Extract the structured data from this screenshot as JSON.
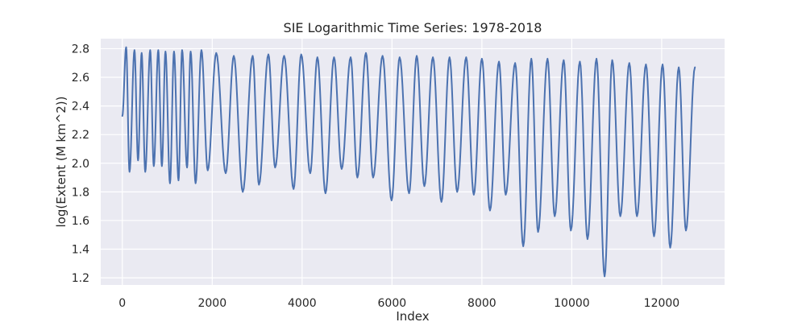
{
  "chart_data": {
    "type": "line",
    "title": "SIE Logarithmic Time Series: 1978-2018",
    "xlabel": "Index",
    "ylabel": "log(Extent (M km^2))",
    "xlim": [
      -480,
      13400
    ],
    "ylim": [
      1.15,
      2.87
    ],
    "xticks": [
      0,
      2000,
      4000,
      6000,
      8000,
      10000,
      12000
    ],
    "yticks": [
      1.2,
      1.4,
      1.6,
      1.8,
      2.0,
      2.2,
      2.4,
      2.6,
      2.8
    ],
    "xtick_labels": [
      "0",
      "2000",
      "4000",
      "6000",
      "8000",
      "10000",
      "12000"
    ],
    "ytick_labels": [
      "1.2",
      "1.4",
      "1.6",
      "1.8",
      "2.0",
      "2.2",
      "2.4",
      "2.6",
      "2.8"
    ],
    "grid": true,
    "legend": "none",
    "background": "#eaeaf2",
    "line_color": "#4c72b0",
    "series": [
      {
        "x_start": 0,
        "start_value": 2.33,
        "end_x": 12740,
        "end_value": 2.67,
        "cycles": [
          {
            "peak_x": 85,
            "peak": 2.81,
            "trough_x": 160,
            "trough": 1.94
          },
          {
            "peak_x": 270,
            "peak": 2.79,
            "trough_x": 350,
            "trough": 2.02
          },
          {
            "peak_x": 430,
            "peak": 2.77,
            "trough_x": 510,
            "trough": 1.94
          },
          {
            "peak_x": 620,
            "peak": 2.79,
            "trough_x": 700,
            "trough": 1.98
          },
          {
            "peak_x": 800,
            "peak": 2.79,
            "trough_x": 880,
            "trough": 1.98
          },
          {
            "peak_x": 960,
            "peak": 2.78,
            "trough_x": 1060,
            "trough": 1.86
          },
          {
            "peak_x": 1150,
            "peak": 2.78,
            "trough_x": 1250,
            "trough": 1.88
          },
          {
            "peak_x": 1330,
            "peak": 2.79,
            "trough_x": 1440,
            "trough": 1.97
          },
          {
            "peak_x": 1520,
            "peak": 2.78,
            "trough_x": 1630,
            "trough": 1.86
          },
          {
            "peak_x": 1760,
            "peak": 2.79,
            "trough_x": 1900,
            "trough": 1.95
          },
          {
            "peak_x": 2090,
            "peak": 2.77,
            "trough_x": 2300,
            "trough": 1.93
          },
          {
            "peak_x": 2480,
            "peak": 2.75,
            "trough_x": 2680,
            "trough": 1.8
          },
          {
            "peak_x": 2900,
            "peak": 2.75,
            "trough_x": 3040,
            "trough": 1.85
          },
          {
            "peak_x": 3250,
            "peak": 2.76,
            "trough_x": 3400,
            "trough": 1.97
          },
          {
            "peak_x": 3600,
            "peak": 2.75,
            "trough_x": 3810,
            "trough": 1.82
          },
          {
            "peak_x": 3980,
            "peak": 2.76,
            "trough_x": 4180,
            "trough": 1.93
          },
          {
            "peak_x": 4340,
            "peak": 2.74,
            "trough_x": 4520,
            "trough": 1.79
          },
          {
            "peak_x": 4710,
            "peak": 2.74,
            "trough_x": 4880,
            "trough": 1.96
          },
          {
            "peak_x": 5080,
            "peak": 2.74,
            "trough_x": 5230,
            "trough": 1.9
          },
          {
            "peak_x": 5420,
            "peak": 2.77,
            "trough_x": 5580,
            "trough": 1.9
          },
          {
            "peak_x": 5790,
            "peak": 2.75,
            "trough_x": 5990,
            "trough": 1.74
          },
          {
            "peak_x": 6170,
            "peak": 2.74,
            "trough_x": 6380,
            "trough": 1.79
          },
          {
            "peak_x": 6550,
            "peak": 2.75,
            "trough_x": 6720,
            "trough": 1.84
          },
          {
            "peak_x": 6910,
            "peak": 2.74,
            "trough_x": 7100,
            "trough": 1.73
          },
          {
            "peak_x": 7280,
            "peak": 2.74,
            "trough_x": 7450,
            "trough": 1.8
          },
          {
            "peak_x": 7650,
            "peak": 2.74,
            "trough_x": 7820,
            "trough": 1.78
          },
          {
            "peak_x": 8000,
            "peak": 2.73,
            "trough_x": 8180,
            "trough": 1.67
          },
          {
            "peak_x": 8380,
            "peak": 2.71,
            "trough_x": 8530,
            "trough": 1.78
          },
          {
            "peak_x": 8740,
            "peak": 2.7,
            "trough_x": 8920,
            "trough": 1.42
          },
          {
            "peak_x": 9100,
            "peak": 2.73,
            "trough_x": 9250,
            "trough": 1.52
          },
          {
            "peak_x": 9460,
            "peak": 2.73,
            "trough_x": 9620,
            "trough": 1.63
          },
          {
            "peak_x": 9820,
            "peak": 2.72,
            "trough_x": 9980,
            "trough": 1.53
          },
          {
            "peak_x": 10180,
            "peak": 2.71,
            "trough_x": 10350,
            "trough": 1.47
          },
          {
            "peak_x": 10550,
            "peak": 2.73,
            "trough_x": 10730,
            "trough": 1.21
          },
          {
            "peak_x": 10900,
            "peak": 2.72,
            "trough_x": 11080,
            "trough": 1.63
          },
          {
            "peak_x": 11280,
            "peak": 2.7,
            "trough_x": 11450,
            "trough": 1.63
          },
          {
            "peak_x": 11650,
            "peak": 2.69,
            "trough_x": 11830,
            "trough": 1.49
          },
          {
            "peak_x": 12020,
            "peak": 2.69,
            "trough_x": 12190,
            "trough": 1.41
          },
          {
            "peak_x": 12380,
            "peak": 2.67,
            "trough_x": 12540,
            "trough": 1.53
          }
        ]
      }
    ]
  }
}
